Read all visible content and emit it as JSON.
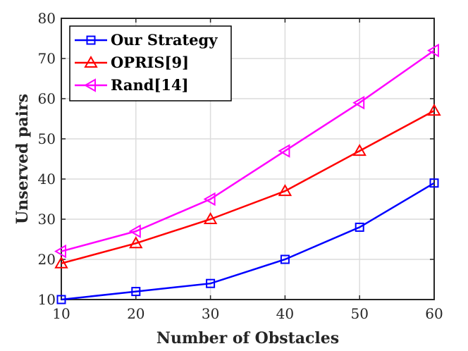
{
  "chart_data": {
    "type": "line",
    "xlabel": "Number of Obstacles",
    "ylabel": "Unserved pairs",
    "x": [
      10,
      20,
      30,
      40,
      50,
      60
    ],
    "xlim": [
      10,
      60
    ],
    "ylim": [
      10,
      80
    ],
    "xticks": [
      "10",
      "20",
      "30",
      "40",
      "50",
      "60"
    ],
    "yticks": [
      "10",
      "20",
      "30",
      "40",
      "50",
      "60",
      "70",
      "80"
    ],
    "grid": true,
    "legend_position": "top-left",
    "series": [
      {
        "name": "Our Strategy",
        "values": [
          10,
          12,
          14,
          20,
          28,
          39
        ],
        "color": "#0000ff",
        "marker": "square"
      },
      {
        "name": "OPRIS[9]",
        "values": [
          19,
          24,
          30,
          37,
          47,
          57
        ],
        "color": "#ff0000",
        "marker": "triangle-up"
      },
      {
        "name": "Rand[14]",
        "values": [
          22,
          27,
          35,
          47,
          59,
          72
        ],
        "color": "#ff00ff",
        "marker": "triangle-left"
      }
    ]
  }
}
